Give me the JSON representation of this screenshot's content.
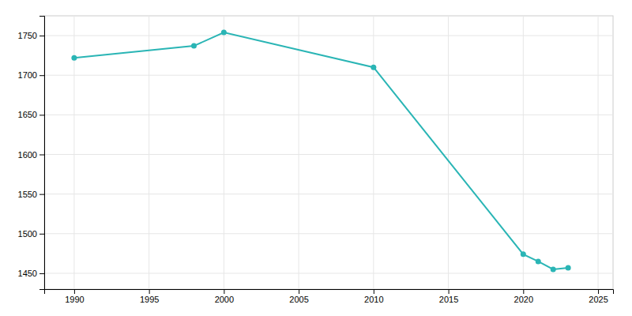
{
  "chart_data": {
    "type": "line",
    "x": [
      1990,
      1998,
      2000,
      2010,
      2020,
      2021,
      2022,
      2023
    ],
    "values": [
      1722,
      1737,
      1754,
      1710,
      1474,
      1465,
      1455,
      1457
    ],
    "color": "#2ab5b5",
    "marker": "circle",
    "xlim": [
      1988,
      2026
    ],
    "ylim": [
      1430,
      1775
    ],
    "xticks": [
      1990,
      1995,
      2000,
      2005,
      2010,
      2015,
      2020,
      2025
    ],
    "yticks": [
      1450,
      1500,
      1550,
      1600,
      1650,
      1700,
      1750
    ],
    "grid": true
  }
}
